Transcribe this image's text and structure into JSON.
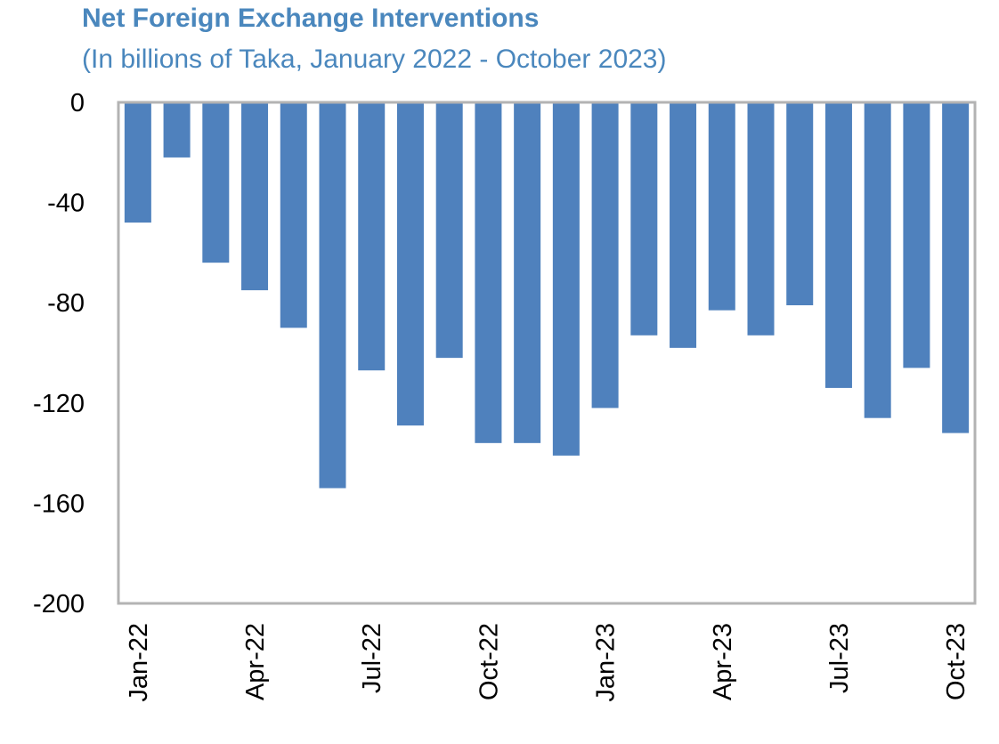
{
  "chart_data": {
    "type": "bar",
    "title": "Net Foreign Exchange Interventions",
    "subtitle": "(In billions of Taka, January 2022 - October 2023)",
    "xlabel": "",
    "ylabel": "",
    "ylim": [
      -200,
      0
    ],
    "yticks": [
      0,
      -40,
      -80,
      -120,
      -160,
      -200
    ],
    "categories": [
      "Jan-22",
      "",
      "",
      "Apr-22",
      "",
      "",
      "Jul-22",
      "",
      "",
      "Oct-22",
      "",
      "",
      "Jan-23",
      "",
      "",
      "Apr-23",
      "",
      "",
      "Jul-23",
      "",
      "",
      "Oct-23"
    ],
    "values": [
      -48,
      -22,
      -64,
      -75,
      -90,
      -154,
      -107,
      -129,
      -102,
      -136,
      -136,
      -141,
      -122,
      -93,
      -98,
      -83,
      -93,
      -81,
      -114,
      -126,
      -106,
      -132
    ],
    "grid": false,
    "bar_color": "#4f81bd",
    "axis_color": "#b3b3b3"
  }
}
